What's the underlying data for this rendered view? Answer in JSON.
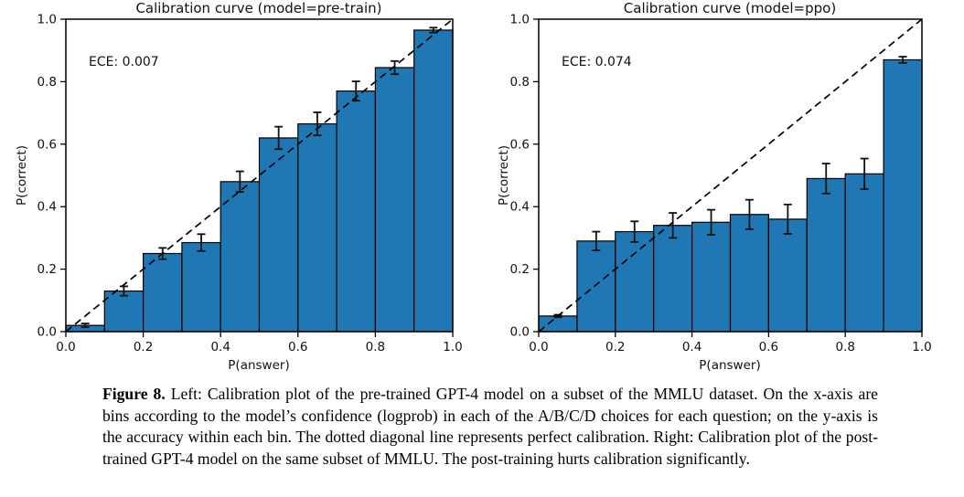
{
  "chart_data": [
    {
      "type": "bar",
      "title": "Calibration curve (model=pre-train)",
      "annotation": "ECE: 0.007",
      "xlabel": "P(answer)",
      "ylabel": "P(correct)",
      "xlim": [
        0.0,
        1.0
      ],
      "ylim": [
        0.0,
        1.0
      ],
      "grid": false,
      "bin_edges": [
        0.0,
        0.1,
        0.2,
        0.3,
        0.4,
        0.5,
        0.6,
        0.7,
        0.8,
        0.9,
        1.0
      ],
      "bin_centers": [
        0.05,
        0.15,
        0.25,
        0.35,
        0.45,
        0.55,
        0.65,
        0.75,
        0.85,
        0.95
      ],
      "values": [
        0.02,
        0.13,
        0.25,
        0.285,
        0.48,
        0.62,
        0.665,
        0.77,
        0.845,
        0.965
      ],
      "errors": [
        0.006,
        0.015,
        0.018,
        0.027,
        0.033,
        0.036,
        0.037,
        0.031,
        0.021,
        0.008
      ],
      "x_ticks": [
        "0.0",
        "0.2",
        "0.4",
        "0.6",
        "0.8",
        "1.0"
      ],
      "y_ticks": [
        "0.0",
        "0.2",
        "0.4",
        "0.6",
        "0.8",
        "1.0"
      ],
      "diagonal_line": {
        "from": [
          0,
          0
        ],
        "to": [
          1,
          1
        ],
        "style": "dashed",
        "meaning": "perfect calibration"
      },
      "bar_color": "#1f77b4",
      "edge_color": "#000000"
    },
    {
      "type": "bar",
      "title": "Calibration curve (model=ppo)",
      "annotation": "ECE: 0.074",
      "xlabel": "P(answer)",
      "ylabel": "P(correct)",
      "xlim": [
        0.0,
        1.0
      ],
      "ylim": [
        0.0,
        1.0
      ],
      "grid": false,
      "bin_edges": [
        0.0,
        0.1,
        0.2,
        0.3,
        0.4,
        0.5,
        0.6,
        0.7,
        0.8,
        0.9,
        1.0
      ],
      "bin_centers": [
        0.05,
        0.15,
        0.25,
        0.35,
        0.45,
        0.55,
        0.65,
        0.75,
        0.85,
        0.95
      ],
      "values": [
        0.05,
        0.29,
        0.32,
        0.34,
        0.35,
        0.375,
        0.36,
        0.49,
        0.505,
        0.87
      ],
      "errors": [
        0.004,
        0.03,
        0.033,
        0.04,
        0.04,
        0.047,
        0.047,
        0.048,
        0.049,
        0.01
      ],
      "x_ticks": [
        "0.0",
        "0.2",
        "0.4",
        "0.6",
        "0.8",
        "1.0"
      ],
      "y_ticks": [
        "0.0",
        "0.2",
        "0.4",
        "0.6",
        "0.8",
        "1.0"
      ],
      "diagonal_line": {
        "from": [
          0,
          0
        ],
        "to": [
          1,
          1
        ],
        "style": "dashed",
        "meaning": "perfect calibration"
      },
      "bar_color": "#1f77b4",
      "edge_color": "#000000"
    }
  ],
  "caption": {
    "label": "Figure 8.",
    "text": "Left: Calibration plot of the pre-trained GPT-4 model on a subset of the MMLU dataset. On the x-axis are bins according to the model’s confidence (logprob) in each of the A/B/C/D choices for each question; on the y-axis is the accuracy within each bin. The dotted diagonal line represents perfect calibration. Right: Calibration plot of the post-trained GPT-4 model on the same subset of MMLU. The post-training hurts calibration significantly."
  }
}
